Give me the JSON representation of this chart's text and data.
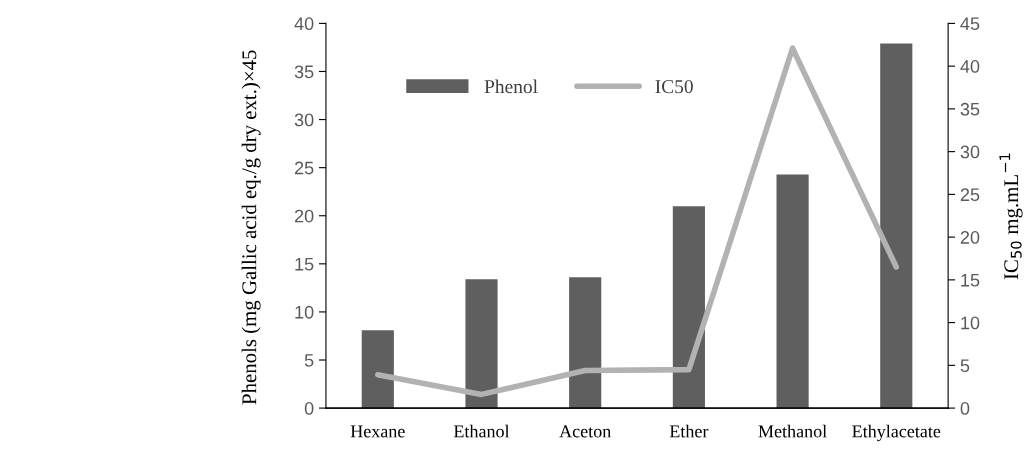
{
  "chart_data": {
    "type": "bar",
    "categories": [
      "Hexane",
      "Ethanol",
      "Aceton",
      "Ether",
      "Methanol",
      "Ethylacetate"
    ],
    "ylabel": "Phenols (mg Gallic acid eq./g dry ext.)×45",
    "y2label": "IC$_{50}$ mg.mL$^{−1}$",
    "series": [
      {
        "name": "Phenol",
        "color": "#5f5f5f",
        "values": [
          8.1,
          13.4,
          13.6,
          21.0,
          24.3,
          37.9
        ]
      },
      {
        "name": "IC50",
        "type": "line",
        "axis": "y2",
        "color": "#b2b2b2",
        "values": [
          3.9,
          1.6,
          4.4,
          4.5,
          42.1,
          16.5
        ]
      }
    ],
    "ylim": [
      0,
      40
    ],
    "yticks": [
      0,
      5,
      10,
      15,
      20,
      25,
      30,
      35,
      40
    ],
    "y2lim": [
      0,
      45
    ],
    "y2ticks": [
      0,
      5,
      10,
      15,
      20,
      25,
      30,
      35,
      40,
      45
    ],
    "grid": false,
    "legend": "top",
    "marker": "none",
    "line_style": "solid"
  }
}
